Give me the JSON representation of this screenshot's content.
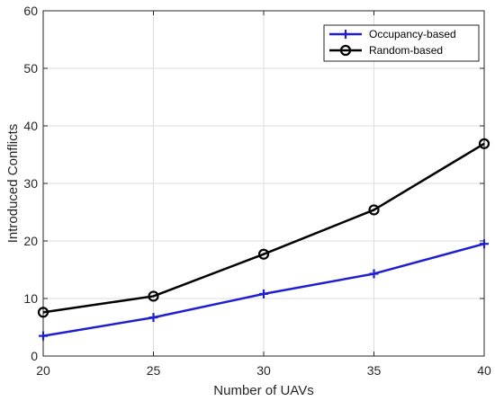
{
  "chart_data": {
    "type": "line",
    "x": [
      20,
      25,
      30,
      35,
      40
    ],
    "series": [
      {
        "name": "Occupancy-based",
        "values": [
          3.5,
          6.7,
          10.8,
          14.3,
          19.5
        ],
        "color": "#1f1fd0",
        "marker": "plus"
      },
      {
        "name": "Random-based",
        "values": [
          7.6,
          10.4,
          17.7,
          25.4,
          36.9
        ],
        "color": "#000000",
        "marker": "circle"
      }
    ],
    "xlabel": "Number of UAVs",
    "ylabel": "Introduced Conflicts",
    "xlim": [
      20,
      40
    ],
    "ylim": [
      0,
      60
    ],
    "xticks": [
      "20",
      "25",
      "30",
      "35",
      "40"
    ],
    "yticks": [
      "0",
      "10",
      "20",
      "30",
      "40",
      "50",
      "60"
    ],
    "grid": true,
    "legend_position": "top-right"
  }
}
